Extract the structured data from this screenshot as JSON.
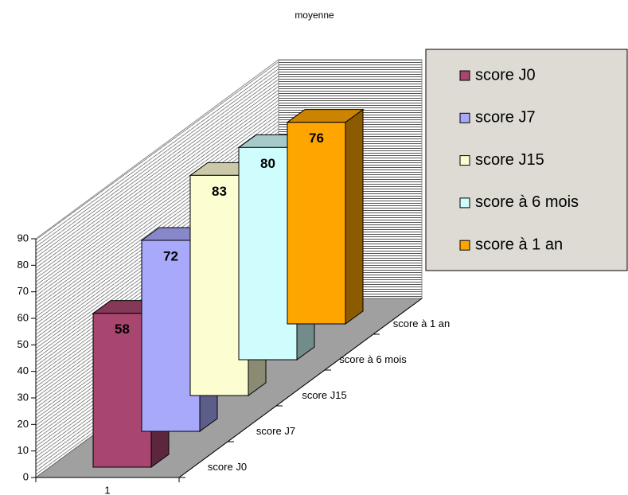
{
  "chart_data": {
    "type": "bar3d",
    "title": "moyenne",
    "categories": [
      "1"
    ],
    "series": [
      {
        "name": "score J0",
        "color": "#a8466f",
        "values": [
          58
        ]
      },
      {
        "name": "score J7",
        "color": "#a9a9fb",
        "values": [
          72
        ]
      },
      {
        "name": "score J15",
        "color": "#fdfdd2",
        "values": [
          83
        ]
      },
      {
        "name": "score à 6 mois",
        "color": "#cffdfd",
        "values": [
          80
        ]
      },
      {
        "name": "score à 1 an",
        "color": "#ffa500",
        "values": [
          76
        ]
      }
    ],
    "ylim": [
      0,
      90
    ],
    "yticks": [
      0,
      10,
      20,
      30,
      40,
      50,
      60,
      70,
      80,
      90
    ],
    "legend": "right"
  }
}
